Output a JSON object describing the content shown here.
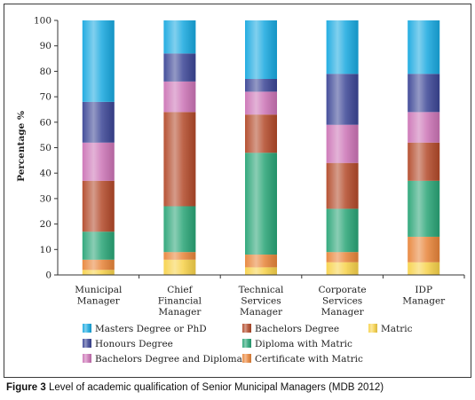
{
  "caption": {
    "label": "Figure 3",
    "text": "Level of academic qualification of Senior Municipal Managers (MDB 2012)"
  },
  "chart_data": {
    "type": "bar",
    "stacked": true,
    "title": "",
    "xlabel": "",
    "ylabel": "Percentage %",
    "ylim": [
      0,
      100
    ],
    "yticks": [
      0,
      10,
      20,
      30,
      40,
      50,
      60,
      70,
      80,
      90,
      100
    ],
    "grid": false,
    "legend_position": "bottom",
    "categories": [
      [
        "Municipal",
        "Manager"
      ],
      [
        "Chief",
        "Financial",
        "Manager"
      ],
      [
        "Technical",
        "Services",
        "Manager"
      ],
      [
        "Corporate",
        "Services",
        "Manager"
      ],
      [
        "IDP",
        "Manager"
      ]
    ],
    "series": [
      {
        "name": "Matric",
        "color": "#f7d24a",
        "values": [
          2,
          6,
          3,
          5,
          5
        ]
      },
      {
        "name": "Certificate with Matric",
        "color": "#e8853a",
        "values": [
          4,
          3,
          5,
          4,
          10
        ]
      },
      {
        "name": "Diploma with Matric",
        "color": "#2aa577",
        "values": [
          11,
          18,
          40,
          17,
          22
        ]
      },
      {
        "name": "Bachelors Degree",
        "color": "#b34a2a",
        "values": [
          20,
          37,
          15,
          18,
          15
        ]
      },
      {
        "name": "Bachelors Degree and Diploma",
        "color": "#cc74b6",
        "values": [
          15,
          12,
          9,
          15,
          12
        ]
      },
      {
        "name": "Honours Degree",
        "color": "#3c4696",
        "values": [
          16,
          11,
          5,
          20,
          15
        ]
      },
      {
        "name": "Masters Degree or PhD",
        "color": "#19a9e0",
        "values": [
          32,
          13,
          23,
          21,
          21
        ]
      }
    ],
    "legend_order": [
      "Masters Degree or PhD",
      "Bachelors Degree",
      "Matric",
      "Honours Degree",
      "Diploma with Matric",
      "Bachelors Degree and Diploma",
      "Certificate with Matric"
    ]
  }
}
